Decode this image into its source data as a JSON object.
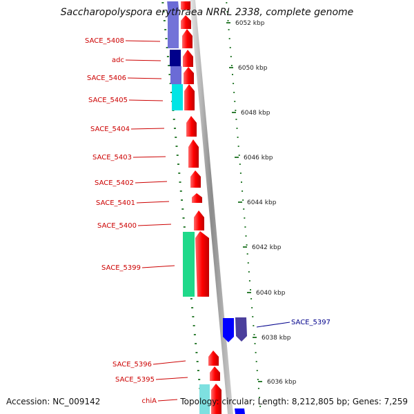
{
  "title": "Saccharopolyspora erythraea NRRL 2338, complete genome",
  "footer": {
    "accession": "Accession: NC_009142",
    "topology": "Topology: circular; Length: 8,212,805 bp; Genes: 7,259"
  },
  "colors": {
    "forward_gene": "#ff0000",
    "forward_label": "#cc0000",
    "reverse_label": "#00008b",
    "backbone": "#999999",
    "tick": "#2e7d32"
  },
  "scale_labels": [
    "6052 kbp",
    "6050 kbp",
    "6048 kbp",
    "6046 kbp",
    "6044 kbp",
    "6042 kbp",
    "6040 kbp",
    "6038 kbp",
    "6036 kbp"
  ],
  "gene_labels": {
    "left": [
      "SACE_5408",
      "adc",
      "SACE_5406",
      "SACE_5405",
      "SACE_5404",
      "SACE_5403",
      "SACE_5402",
      "SACE_5401",
      "SACE_5400",
      "SACE_5399",
      "SACE_5396",
      "SACE_5395",
      "chiA"
    ],
    "right": [
      "SACE_5397"
    ]
  },
  "category_colors": [
    "#6b6bd6",
    "#00008b",
    "#00e5e5",
    "#1fd98a",
    "#0000ff",
    "#4b3f9c",
    "#7ee0e0"
  ]
}
